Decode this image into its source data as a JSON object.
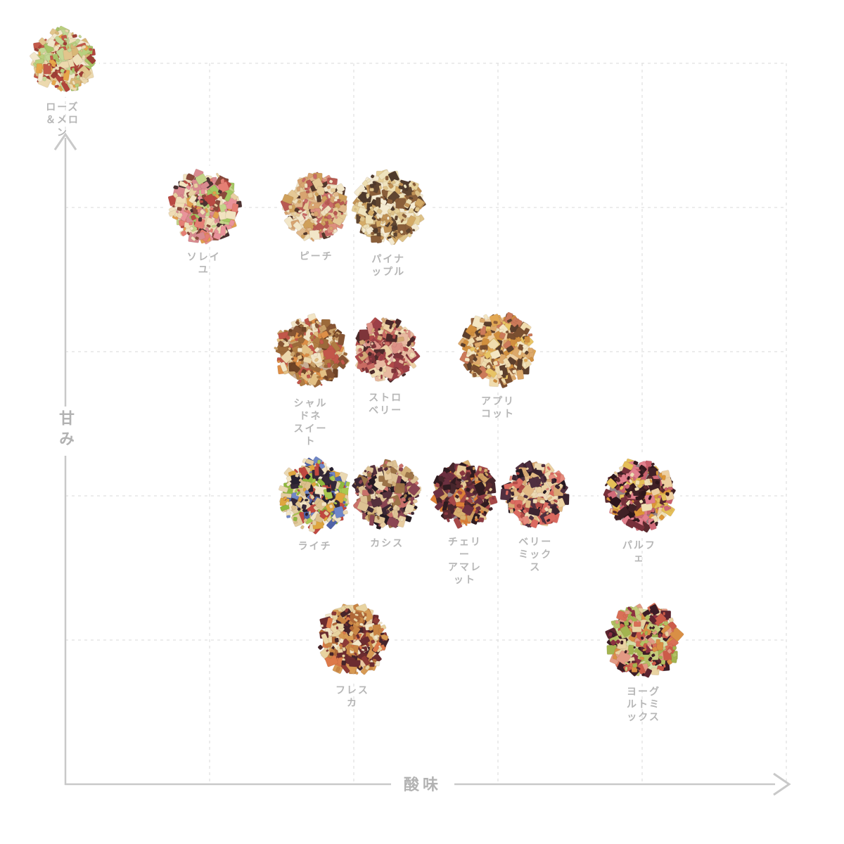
{
  "style": {
    "background": "#ffffff",
    "grid_color": "#d9d9d9",
    "axis_color": "#c9c9c9",
    "label_color": "#b6b6b6",
    "axis_label_color": "#b2b2b2"
  },
  "chart_data": {
    "type": "scatter",
    "title": "",
    "xlabel": "酸味",
    "ylabel": "甘み",
    "xlim": [
      0,
      5
    ],
    "ylim": [
      0,
      5
    ],
    "grid": true,
    "legend": false,
    "points": [
      {
        "label": "ローズ＆メロン",
        "x": -0.02,
        "y": 5.02,
        "size": 90,
        "palette": [
          "#ecd9ae",
          "#e2c58c",
          "#f2e7cb",
          "#b9d07e",
          "#a8c468",
          "#b1453c",
          "#c25a49",
          "#e7a64a",
          "#d9b777",
          "#efe0ba",
          "#c3d795",
          "#9e3f36"
        ]
      },
      {
        "label": "ソレイユ",
        "x": 0.96,
        "y": 4.01,
        "size": 102,
        "palette": [
          "#efddb5",
          "#e8cfa0",
          "#e9939a",
          "#e57f74",
          "#a3c862",
          "#c3d489",
          "#b94a43",
          "#4c3232",
          "#e2a04e",
          "#f2e3c0",
          "#d98b90",
          "#8a4a3c"
        ]
      },
      {
        "label": "ピーチ",
        "x": 1.74,
        "y": 4.0,
        "size": 96,
        "palette": [
          "#e5c996",
          "#efe0bd",
          "#dd8f7e",
          "#c96a67",
          "#cfa05b",
          "#54382b",
          "#e0b88a",
          "#d8a470",
          "#b85a52",
          "#f2e6c8"
        ]
      },
      {
        "label": "パイナップル",
        "x": 2.24,
        "y": 4.0,
        "size": 104,
        "palette": [
          "#eedfb2",
          "#f4ead0",
          "#dec288",
          "#c19356",
          "#8a5f3a",
          "#4f3a2c",
          "#e6d098",
          "#d4ab67",
          "#efe3bd",
          "#5f4530"
        ]
      },
      {
        "label": "シャルドネ\nスイート",
        "x": 1.7,
        "y": 3.0,
        "size": 104,
        "palette": [
          "#9c6a3a",
          "#855433",
          "#ecd7ab",
          "#dd8f47",
          "#caa169",
          "#c2574a",
          "#f2e5c6",
          "#b07c42",
          "#e3c084",
          "#6e4326"
        ]
      },
      {
        "label": "ストロベリー",
        "x": 2.22,
        "y": 3.01,
        "size": 92,
        "palette": [
          "#c96b62",
          "#b04a4a",
          "#7e353a",
          "#dd9287",
          "#ecd0a4",
          "#d3a876",
          "#4c2a2a",
          "#e8b9a0",
          "#9c4048",
          "#f0dcb4"
        ]
      },
      {
        "label": "アプリコット",
        "x": 3.0,
        "y": 3.02,
        "size": 106,
        "palette": [
          "#e2a853",
          "#d18f3e",
          "#f0dcae",
          "#e8c465",
          "#91603a",
          "#5c3f2c",
          "#cc7a5a",
          "#f4e6c2",
          "#dda96a",
          "#7a4f30"
        ]
      },
      {
        "label": "ライチ",
        "x": 1.73,
        "y": 2.01,
        "size": 104,
        "palette": [
          "#ead8b2",
          "#dcc08c",
          "#f2e5c4",
          "#a9c94f",
          "#8fb83e",
          "#6e86c8",
          "#4f63a8",
          "#342838",
          "#c04840",
          "#dfa63f",
          "#e3cda0",
          "#262030"
        ]
      },
      {
        "label": "カシス",
        "x": 2.23,
        "y": 2.01,
        "size": 96,
        "palette": [
          "#ddc294",
          "#ecd9b3",
          "#3a2633",
          "#241a22",
          "#8a4552",
          "#9c7448",
          "#c9706a",
          "#e8cda0",
          "#55303c",
          "#d3b077"
        ]
      },
      {
        "label": "チェリー\nアマレット",
        "x": 2.77,
        "y": 2.01,
        "size": 92,
        "palette": [
          "#46262c",
          "#2f1b20",
          "#cf9f63",
          "#dd8038",
          "#a64848",
          "#e6c896",
          "#6b3040",
          "#5a2a30",
          "#d8b070",
          "#8c3a42"
        ]
      },
      {
        "label": "ベリー\nミックス",
        "x": 3.26,
        "y": 2.01,
        "size": 92,
        "palette": [
          "#e2ba85",
          "#ecd2a2",
          "#3b2430",
          "#241821",
          "#db6a60",
          "#e58b7d",
          "#b14a46",
          "#d8a873",
          "#503040",
          "#efdcb5"
        ]
      },
      {
        "label": "パルフェ",
        "x": 3.98,
        "y": 2.01,
        "size": 102,
        "palette": [
          "#402126",
          "#5a292e",
          "#2d161b",
          "#e2808d",
          "#c9606c",
          "#f0e0b4",
          "#e5bf58",
          "#dd9638",
          "#77303a",
          "#d06a78",
          "#35191e",
          "#eecfa0"
        ]
      },
      {
        "label": "フレスカ",
        "x": 1.99,
        "y": 1.0,
        "size": 100,
        "palette": [
          "#d79a54",
          "#c98544",
          "#ecd6a6",
          "#e8d3a0",
          "#6b2c30",
          "#46242a",
          "#f2e6c8",
          "#b06838",
          "#dd7a4a",
          "#8c3a36"
        ]
      },
      {
        "label": "ヨーグルトミックス",
        "x": 4.01,
        "y": 1.0,
        "size": 104,
        "palette": [
          "#b3c263",
          "#c5cc7d",
          "#d96f57",
          "#cc5b49",
          "#5c2430",
          "#3c1c26",
          "#d98f45",
          "#e9d3a2",
          "#e39a84",
          "#8c3040",
          "#a3b450"
        ]
      }
    ]
  }
}
